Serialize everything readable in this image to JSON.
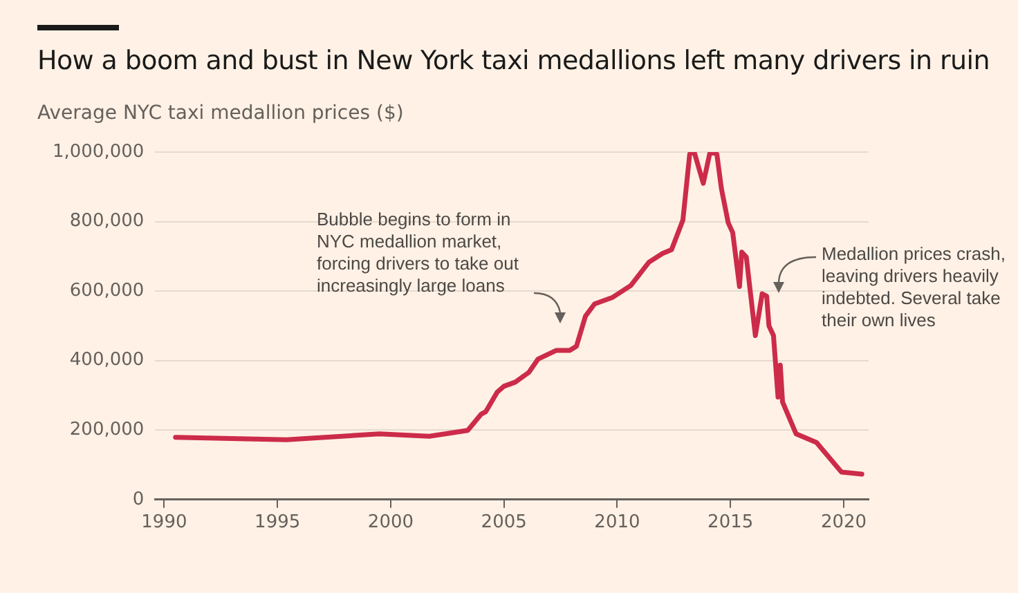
{
  "chart_data": {
    "type": "line",
    "title": "How a boom and bust in New York taxi medallions left many drivers in ruin",
    "ylabel": "Average NYC taxi medallion prices ($)",
    "x": [
      1990.5,
      1995.4,
      1999.5,
      2001.7,
      2003.4,
      2004.0,
      2004.2,
      2004.7,
      2005.0,
      2005.5,
      2006.1,
      2006.5,
      2007.3,
      2007.9,
      2008.2,
      2008.6,
      2009.0,
      2009.8,
      2010.6,
      2011.4,
      2012.0,
      2012.4,
      2012.9,
      2013.2,
      2013.4,
      2013.8,
      2014.1,
      2014.4,
      2014.6,
      2014.9,
      2015.1,
      2015.4,
      2015.5,
      2015.7,
      2016.1,
      2016.4,
      2016.6,
      2016.7,
      2016.9,
      2017.1,
      2017.2,
      2017.3,
      2017.9,
      2018.8,
      2019.9,
      2020.8
    ],
    "series": [
      {
        "color": "#cc2b4a",
        "values": [
          179000,
          172000,
          189000,
          182000,
          199000,
          246000,
          253000,
          309000,
          326000,
          338000,
          366000,
          404000,
          429000,
          429000,
          441000,
          528000,
          563000,
          582000,
          616000,
          683000,
          708000,
          719000,
          804000,
          994000,
          1000000,
          910000,
          1000000,
          994000,
          895000,
          797000,
          768000,
          613000,
          712000,
          698000,
          472000,
          592000,
          585000,
          500000,
          472000,
          295000,
          387000,
          281000,
          189000,
          164000,
          79000,
          73000
        ]
      }
    ],
    "xlim": [
      1989.6,
      2021.1
    ],
    "xticks": [
      1990,
      1995,
      2000,
      2005,
      2010,
      2015,
      2020
    ],
    "ylim": [
      0,
      1000000
    ],
    "yticks": [
      0,
      {
        "value": 200000,
        "label": "200,000"
      },
      {
        "value": 400000,
        "label": "400,000"
      },
      {
        "value": 600000,
        "label": "600,000"
      },
      {
        "value": 800000,
        "label": "800,000"
      },
      {
        "value": 1000000,
        "label": "1,000,000"
      }
    ],
    "grid": "y",
    "legend": false,
    "marker": "none",
    "line_style": "solid",
    "annotations": [
      "Bubble begins to form in\nNYC medallion market,\nforcing drivers to take out\nincreasingly large loans",
      "Medallion prices crash,\nleaving drivers heavily\nindebted. Several take\ntheir own lives"
    ]
  }
}
